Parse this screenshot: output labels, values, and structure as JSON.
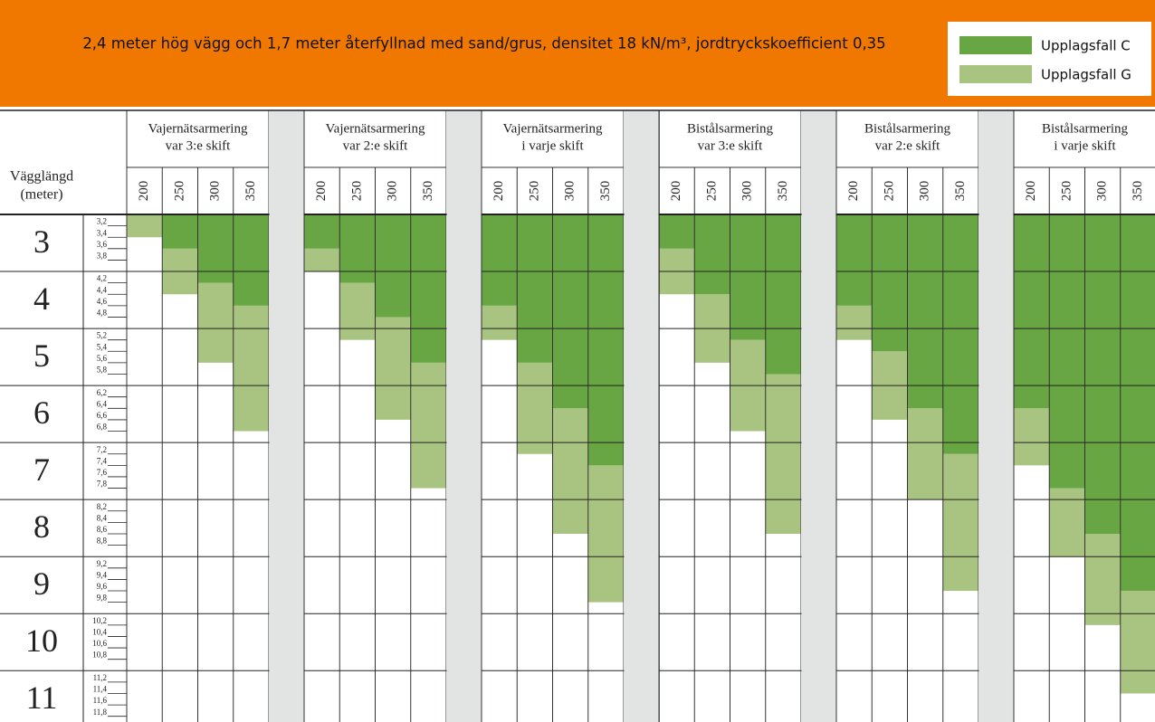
{
  "chart_data": {
    "type": "range-table",
    "title": "2,4 meter hög vägg och 1,7 meter återfyllnad med sand/grus, densitet 18 kN/m³, jordtryckskoefficient 0,35",
    "series": [
      {
        "name": "Upplagsfall C",
        "color": "#67a643"
      },
      {
        "name": "Upplagsfall G",
        "color": "#a9c480"
      }
    ],
    "row_header": [
      "Vägglängd",
      "(meter)"
    ],
    "ylim": [
      3,
      11.9
    ],
    "rows": [
      3,
      4,
      5,
      6,
      7,
      8,
      9,
      10,
      11
    ],
    "subticks": [
      {
        "value": 3.2,
        "label": "3,2"
      },
      {
        "value": 3.4,
        "label": "3,4"
      },
      {
        "value": 3.6,
        "label": "3,6"
      },
      {
        "value": 3.8,
        "label": "3,8"
      },
      {
        "value": 4.2,
        "label": "4,2"
      },
      {
        "value": 4.4,
        "label": "4,4"
      },
      {
        "value": 4.6,
        "label": "4,6"
      },
      {
        "value": 4.8,
        "label": "4,8"
      },
      {
        "value": 5.2,
        "label": "5,2"
      },
      {
        "value": 5.4,
        "label": "5,4"
      },
      {
        "value": 5.6,
        "label": "5,6"
      },
      {
        "value": 5.8,
        "label": "5,8"
      },
      {
        "value": 6.2,
        "label": "6,2"
      },
      {
        "value": 6.4,
        "label": "6,4"
      },
      {
        "value": 6.6,
        "label": "6,6"
      },
      {
        "value": 6.8,
        "label": "6,8"
      },
      {
        "value": 7.2,
        "label": "7,2"
      },
      {
        "value": 7.4,
        "label": "7,4"
      },
      {
        "value": 7.6,
        "label": "7,6"
      },
      {
        "value": 7.8,
        "label": "7,8"
      },
      {
        "value": 8.2,
        "label": "8,2"
      },
      {
        "value": 8.4,
        "label": "8,4"
      },
      {
        "value": 8.6,
        "label": "8,6"
      },
      {
        "value": 8.8,
        "label": "8,8"
      },
      {
        "value": 9.2,
        "label": "9,2"
      },
      {
        "value": 9.4,
        "label": "9,4"
      },
      {
        "value": 9.6,
        "label": "9,6"
      },
      {
        "value": 9.8,
        "label": "9,8"
      },
      {
        "value": 10.2,
        "label": "10,2"
      },
      {
        "value": 10.4,
        "label": "10,4"
      },
      {
        "value": 10.6,
        "label": "10,6"
      },
      {
        "value": 10.8,
        "label": "10,8"
      },
      {
        "value": 11.2,
        "label": "11,2"
      },
      {
        "value": 11.4,
        "label": "11,4"
      },
      {
        "value": 11.6,
        "label": "11,6"
      },
      {
        "value": 11.8,
        "label": "11,8"
      }
    ],
    "groups": [
      {
        "title": [
          "Vajernätsarmering",
          "var 3:e skift"
        ],
        "thicknesses": [
          200,
          250,
          300,
          350
        ],
        "values": [
          [
            3.0,
            3.6,
            4.2,
            4.6
          ],
          [
            3.4,
            4.4,
            5.6,
            6.8
          ]
        ]
      },
      {
        "title": [
          "Vajernätsarmering",
          "var 2:e skift"
        ],
        "thicknesses": [
          200,
          250,
          300,
          350
        ],
        "values": [
          [
            3.6,
            4.2,
            4.8,
            5.6
          ],
          [
            4.0,
            5.2,
            6.6,
            7.8
          ]
        ]
      },
      {
        "title": [
          "Vajernätsarmering",
          "i varje skift"
        ],
        "thicknesses": [
          200,
          250,
          300,
          350
        ],
        "values": [
          [
            4.6,
            5.6,
            6.4,
            7.4
          ],
          [
            5.2,
            7.2,
            8.6,
            9.8
          ]
        ]
      },
      {
        "title": [
          "Bistålsarmering",
          "var 3:e skift"
        ],
        "thicknesses": [
          200,
          250,
          300,
          350
        ],
        "values": [
          [
            3.6,
            4.4,
            5.2,
            5.8
          ],
          [
            4.4,
            5.6,
            6.8,
            8.6
          ]
        ]
      },
      {
        "title": [
          "Bistålsarmering",
          "var 2:e skift"
        ],
        "thicknesses": [
          200,
          250,
          300,
          350
        ],
        "values": [
          [
            4.6,
            5.4,
            6.4,
            7.2
          ],
          [
            5.2,
            6.6,
            8.0,
            9.6
          ]
        ]
      },
      {
        "title": [
          "Bistålsarmering",
          "i varje skift"
        ],
        "thicknesses": [
          200,
          250,
          300,
          350
        ],
        "values": [
          [
            6.4,
            7.8,
            8.6,
            9.6
          ],
          [
            7.4,
            9.0,
            10.2,
            11.4
          ]
        ]
      }
    ]
  }
}
